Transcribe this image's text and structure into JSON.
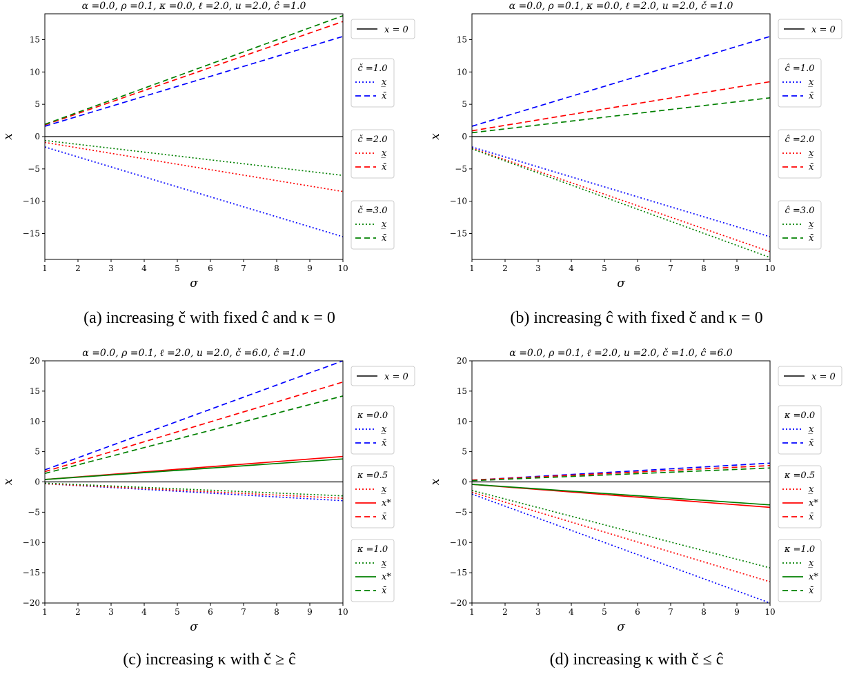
{
  "chart_data": [
    {
      "type": "line",
      "title": "α =0.0, ρ =0.1, κ =0.0, ℓ =2.0, u =2.0, ĉ =1.0",
      "xlabel": "σ",
      "ylabel": "x",
      "xlim": [
        1,
        10
      ],
      "ylim": [
        -19,
        19
      ],
      "xticks": [
        "1",
        "2",
        "3",
        "4",
        "5",
        "6",
        "7",
        "8",
        "9",
        "10"
      ],
      "yticks": [
        {
          "v": 15,
          "label": "15"
        },
        {
          "v": 10,
          "label": "10"
        },
        {
          "v": 5,
          "label": "5"
        },
        {
          "v": 0,
          "label": "0"
        },
        {
          "v": -5,
          "label": "−5"
        },
        {
          "v": -10,
          "label": "−10"
        },
        {
          "v": -15,
          "label": "−15"
        }
      ],
      "grid": false,
      "legend_placement": "right-outside",
      "caption": "(a) increasing č with fixed ĉ and κ = 0",
      "zero_line_label": "x = 0",
      "legend_groups": [
        {
          "title": "č =1.0",
          "color": "#0000ff",
          "entries": [
            {
              "style": "dotted",
              "label": "x̲"
            },
            {
              "style": "dashed",
              "label": "x̄"
            }
          ]
        },
        {
          "title": "č =2.0",
          "color": "#ff0000",
          "entries": [
            {
              "style": "dotted",
              "label": "x̲"
            },
            {
              "style": "dashed",
              "label": "x̄"
            }
          ]
        },
        {
          "title": "č =3.0",
          "color": "#008000",
          "entries": [
            {
              "style": "dotted",
              "label": "x̲"
            },
            {
              "style": "dashed",
              "label": "x̄"
            }
          ]
        }
      ],
      "series": [
        {
          "color": "#0000ff",
          "style": "dotted",
          "x": [
            1,
            10
          ],
          "y": [
            -1.6,
            -15.5
          ]
        },
        {
          "color": "#0000ff",
          "style": "dashed",
          "x": [
            1,
            10
          ],
          "y": [
            1.6,
            15.5
          ]
        },
        {
          "color": "#ff0000",
          "style": "dotted",
          "x": [
            1,
            10
          ],
          "y": [
            -0.9,
            -8.5
          ]
        },
        {
          "color": "#ff0000",
          "style": "dashed",
          "x": [
            1,
            10
          ],
          "y": [
            1.8,
            17.8
          ]
        },
        {
          "color": "#008000",
          "style": "dotted",
          "x": [
            1,
            10
          ],
          "y": [
            -0.6,
            -6.0
          ]
        },
        {
          "color": "#008000",
          "style": "dashed",
          "x": [
            1,
            10
          ],
          "y": [
            1.9,
            18.7
          ]
        }
      ]
    },
    {
      "type": "line",
      "title": "α =0.0, ρ =0.1, κ =0.0, ℓ =2.0, u =2.0, č =1.0",
      "xlabel": "σ",
      "ylabel": "x",
      "xlim": [
        1,
        10
      ],
      "ylim": [
        -19,
        19
      ],
      "xticks": [
        "1",
        "2",
        "3",
        "4",
        "5",
        "6",
        "7",
        "8",
        "9",
        "10"
      ],
      "yticks": [
        {
          "v": 15,
          "label": "15"
        },
        {
          "v": 10,
          "label": "10"
        },
        {
          "v": 5,
          "label": "5"
        },
        {
          "v": 0,
          "label": "0"
        },
        {
          "v": -5,
          "label": "−5"
        },
        {
          "v": -10,
          "label": "−10"
        },
        {
          "v": -15,
          "label": "−15"
        }
      ],
      "grid": false,
      "legend_placement": "right-outside",
      "caption": "(b) increasing ĉ with fixed č and κ = 0",
      "zero_line_label": "x = 0",
      "legend_groups": [
        {
          "title": "ĉ =1.0",
          "color": "#0000ff",
          "entries": [
            {
              "style": "dotted",
              "label": "x̲"
            },
            {
              "style": "dashed",
              "label": "x̄"
            }
          ]
        },
        {
          "title": "ĉ =2.0",
          "color": "#ff0000",
          "entries": [
            {
              "style": "dotted",
              "label": "x̲"
            },
            {
              "style": "dashed",
              "label": "x̄"
            }
          ]
        },
        {
          "title": "ĉ =3.0",
          "color": "#008000",
          "entries": [
            {
              "style": "dotted",
              "label": "x̲"
            },
            {
              "style": "dashed",
              "label": "x̄"
            }
          ]
        }
      ],
      "series": [
        {
          "color": "#0000ff",
          "style": "dotted",
          "x": [
            1,
            10
          ],
          "y": [
            -1.6,
            -15.5
          ]
        },
        {
          "color": "#0000ff",
          "style": "dashed",
          "x": [
            1,
            10
          ],
          "y": [
            1.6,
            15.5
          ]
        },
        {
          "color": "#ff0000",
          "style": "dotted",
          "x": [
            1,
            10
          ],
          "y": [
            -1.8,
            -17.8
          ]
        },
        {
          "color": "#ff0000",
          "style": "dashed",
          "x": [
            1,
            10
          ],
          "y": [
            0.9,
            8.5
          ]
        },
        {
          "color": "#008000",
          "style": "dotted",
          "x": [
            1,
            10
          ],
          "y": [
            -1.9,
            -18.7
          ]
        },
        {
          "color": "#008000",
          "style": "dashed",
          "x": [
            1,
            10
          ],
          "y": [
            0.6,
            6.0
          ]
        }
      ]
    },
    {
      "type": "line",
      "title": "α =0.0, ρ =0.1, ℓ =2.0, u =2.0, č =6.0, ĉ =1.0",
      "xlabel": "σ",
      "ylabel": "x",
      "xlim": [
        1,
        10
      ],
      "ylim": [
        -20,
        20
      ],
      "xticks": [
        "1",
        "2",
        "3",
        "4",
        "5",
        "6",
        "7",
        "8",
        "9",
        "10"
      ],
      "yticks": [
        {
          "v": 20,
          "label": "20"
        },
        {
          "v": 15,
          "label": "15"
        },
        {
          "v": 10,
          "label": "10"
        },
        {
          "v": 5,
          "label": "5"
        },
        {
          "v": 0,
          "label": "0"
        },
        {
          "v": -5,
          "label": "−5"
        },
        {
          "v": -10,
          "label": "−10"
        },
        {
          "v": -15,
          "label": "−15"
        },
        {
          "v": -20,
          "label": "−20"
        }
      ],
      "grid": false,
      "legend_placement": "right-outside",
      "caption": "(c) increasing κ with č ≥ ĉ",
      "zero_line_label": "x = 0",
      "legend_groups": [
        {
          "title": "κ =0.0",
          "color": "#0000ff",
          "entries": [
            {
              "style": "dotted",
              "label": "x̲"
            },
            {
              "style": "dashed",
              "label": "x̄"
            }
          ]
        },
        {
          "title": "κ =0.5",
          "color": "#ff0000",
          "entries": [
            {
              "style": "dotted",
              "label": "x̲"
            },
            {
              "style": "solid",
              "label": "x*"
            },
            {
              "style": "dashed",
              "label": "x̄"
            }
          ]
        },
        {
          "title": "κ =1.0",
          "color": "#008000",
          "entries": [
            {
              "style": "dotted",
              "label": "x̲"
            },
            {
              "style": "solid",
              "label": "x*"
            },
            {
              "style": "dashed",
              "label": "x̄"
            }
          ]
        }
      ],
      "series": [
        {
          "color": "#0000ff",
          "style": "dotted",
          "x": [
            1,
            10
          ],
          "y": [
            -0.3,
            -3.1
          ]
        },
        {
          "color": "#0000ff",
          "style": "dashed",
          "x": [
            1,
            10
          ],
          "y": [
            2.0,
            20.0
          ]
        },
        {
          "color": "#ff0000",
          "style": "dotted",
          "x": [
            1,
            10
          ],
          "y": [
            -0.3,
            -2.7
          ]
        },
        {
          "color": "#ff0000",
          "style": "solid",
          "x": [
            1,
            10
          ],
          "y": [
            0.4,
            4.2
          ]
        },
        {
          "color": "#ff0000",
          "style": "dashed",
          "x": [
            1,
            10
          ],
          "y": [
            1.7,
            16.5
          ]
        },
        {
          "color": "#008000",
          "style": "dotted",
          "x": [
            1,
            10
          ],
          "y": [
            -0.2,
            -2.3
          ]
        },
        {
          "color": "#008000",
          "style": "solid",
          "x": [
            1,
            10
          ],
          "y": [
            0.4,
            3.8
          ]
        },
        {
          "color": "#008000",
          "style": "dashed",
          "x": [
            1,
            10
          ],
          "y": [
            1.4,
            14.2
          ]
        }
      ]
    },
    {
      "type": "line",
      "title": "α =0.0, ρ =0.1, ℓ =2.0, u =2.0, č =1.0, ĉ =6.0",
      "xlabel": "σ",
      "ylabel": "x",
      "xlim": [
        1,
        10
      ],
      "ylim": [
        -20,
        20
      ],
      "xticks": [
        "1",
        "2",
        "3",
        "4",
        "5",
        "6",
        "7",
        "8",
        "9",
        "10"
      ],
      "yticks": [
        {
          "v": 20,
          "label": "20"
        },
        {
          "v": 15,
          "label": "15"
        },
        {
          "v": 10,
          "label": "10"
        },
        {
          "v": 5,
          "label": "5"
        },
        {
          "v": 0,
          "label": "0"
        },
        {
          "v": -5,
          "label": "−5"
        },
        {
          "v": -10,
          "label": "−10"
        },
        {
          "v": -15,
          "label": "−15"
        },
        {
          "v": -20,
          "label": "−20"
        }
      ],
      "grid": false,
      "legend_placement": "right-outside",
      "caption": "(d) increasing κ with č ≤ ĉ",
      "zero_line_label": "x = 0",
      "legend_groups": [
        {
          "title": "κ =0.0",
          "color": "#0000ff",
          "entries": [
            {
              "style": "dotted",
              "label": "x̲"
            },
            {
              "style": "dashed",
              "label": "x̄"
            }
          ]
        },
        {
          "title": "κ =0.5",
          "color": "#ff0000",
          "entries": [
            {
              "style": "dotted",
              "label": "x̲"
            },
            {
              "style": "solid",
              "label": "x*"
            },
            {
              "style": "dashed",
              "label": "x̄"
            }
          ]
        },
        {
          "title": "κ =1.0",
          "color": "#008000",
          "entries": [
            {
              "style": "dotted",
              "label": "x̲"
            },
            {
              "style": "solid",
              "label": "x*"
            },
            {
              "style": "dashed",
              "label": "x̄"
            }
          ]
        }
      ],
      "series": [
        {
          "color": "#0000ff",
          "style": "dotted",
          "x": [
            1,
            10
          ],
          "y": [
            -2.0,
            -20.0
          ]
        },
        {
          "color": "#0000ff",
          "style": "dashed",
          "x": [
            1,
            10
          ],
          "y": [
            0.3,
            3.1
          ]
        },
        {
          "color": "#ff0000",
          "style": "dotted",
          "x": [
            1,
            10
          ],
          "y": [
            -1.7,
            -16.5
          ]
        },
        {
          "color": "#ff0000",
          "style": "solid",
          "x": [
            1,
            10
          ],
          "y": [
            -0.4,
            -4.2
          ]
        },
        {
          "color": "#ff0000",
          "style": "dashed",
          "x": [
            1,
            10
          ],
          "y": [
            0.3,
            2.7
          ]
        },
        {
          "color": "#008000",
          "style": "dotted",
          "x": [
            1,
            10
          ],
          "y": [
            -1.4,
            -14.2
          ]
        },
        {
          "color": "#008000",
          "style": "solid",
          "x": [
            1,
            10
          ],
          "y": [
            -0.4,
            -3.8
          ]
        },
        {
          "color": "#008000",
          "style": "dashed",
          "x": [
            1,
            10
          ],
          "y": [
            0.2,
            2.3
          ]
        }
      ]
    }
  ]
}
